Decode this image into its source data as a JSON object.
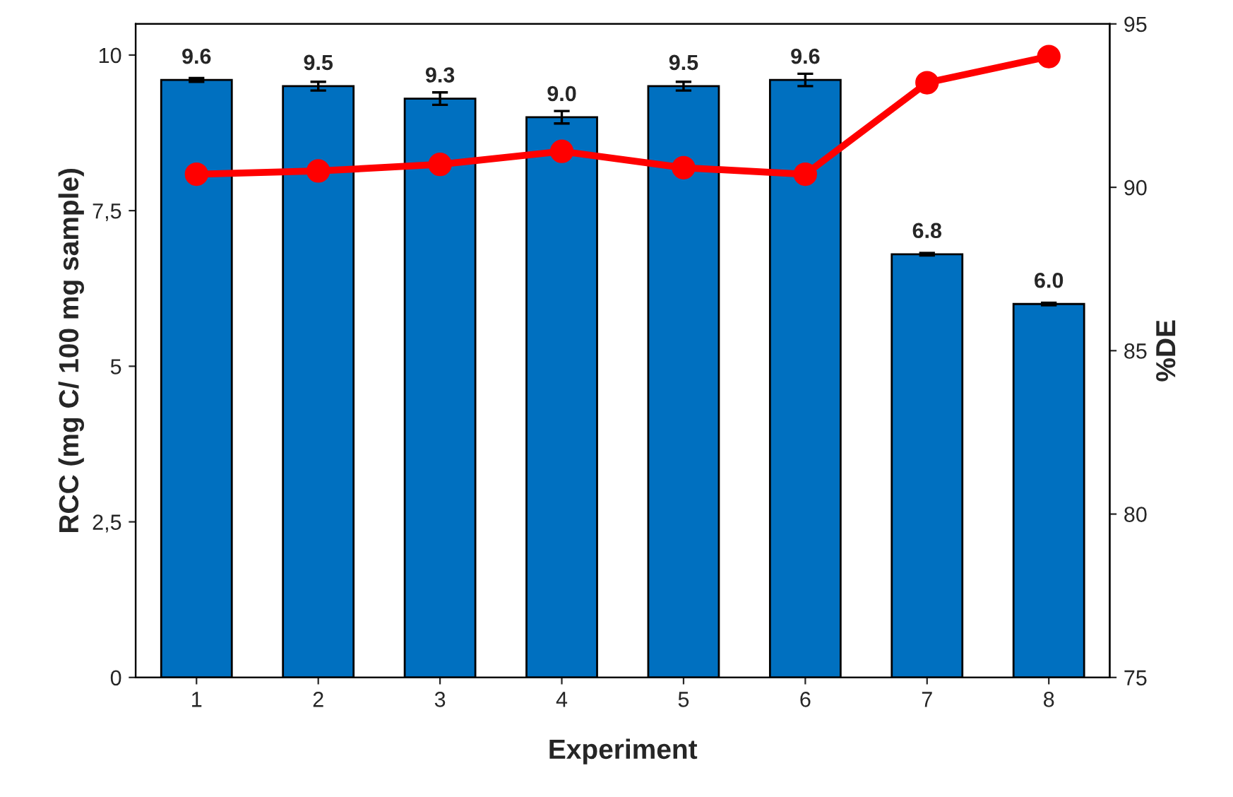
{
  "chart_data": {
    "type": "bar",
    "xlabel": "Experiment",
    "ylabel": "RCC (mg C/ 100 mg sample)",
    "y2label": "%DE",
    "categories": [
      "1",
      "2",
      "3",
      "4",
      "5",
      "6",
      "7",
      "8"
    ],
    "series": [
      {
        "color": "#0070c0",
        "values": [
          9.6,
          9.5,
          9.3,
          9.0,
          9.5,
          9.6,
          6.8,
          6.0
        ],
        "value_labels": [
          "9.6",
          "9.5",
          "9.3",
          "9.0",
          "9.5",
          "9.6",
          "6.8",
          "6.0"
        ],
        "errors": [
          0.03,
          0.07,
          0.1,
          0.1,
          0.07,
          0.1,
          0.02,
          0.02
        ]
      },
      {
        "type": "line",
        "color": "#ff0000",
        "axis": "y2",
        "values": [
          90.4,
          90.5,
          90.7,
          91.1,
          90.6,
          90.4,
          93.2,
          94.0
        ]
      }
    ],
    "marker": "circle",
    "line_style": "solid",
    "grid": false,
    "ylim": [
      0,
      10.5
    ],
    "yticks": [
      0,
      {
        "value": 2.5,
        "label": "2,5"
      },
      5,
      {
        "value": 7.5,
        "label": "7,5"
      },
      10
    ],
    "y2lim": [
      75,
      95
    ],
    "y2ticks": [
      75,
      80,
      85,
      90,
      95
    ]
  }
}
